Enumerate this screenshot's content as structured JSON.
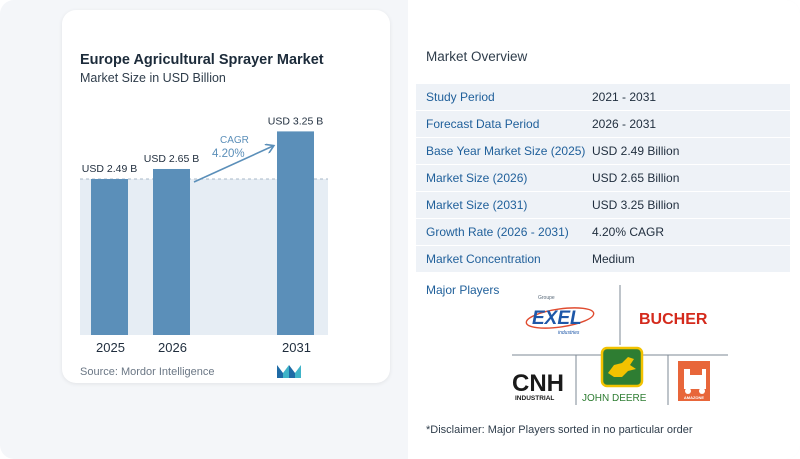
{
  "chart_title": "Europe Agricultural Sprayer Market",
  "chart_subtitle": "Market Size in USD Billion",
  "source": "Source: Mordor Intelligence",
  "chart_data": {
    "type": "bar",
    "categories": [
      "2025",
      "2026",
      "2031"
    ],
    "values": [
      2.49,
      2.65,
      3.25
    ],
    "data_labels": [
      "USD 2.49 B",
      "USD 2.65 B",
      "USD 3.25 B"
    ],
    "title": "Europe Agricultural Sprayer Market",
    "subtitle": "Market Size in USD Billion",
    "xlabel": "",
    "ylabel": "",
    "ylim": [
      0,
      3.4
    ],
    "grid": false,
    "legend": "none",
    "annotation": {
      "label": "CAGR",
      "value": "4.20%"
    },
    "colors": {
      "bar": "#5b8fb9",
      "reference_band": "#e6edf4",
      "reference_line": "#a9b9c9",
      "arrow": "#5b8fb9"
    }
  },
  "overview": {
    "title": "Market Overview",
    "rows": [
      {
        "key": "Study Period",
        "value": "2021 - 2031"
      },
      {
        "key": "Forecast Data Period",
        "value": "2026 - 2031"
      },
      {
        "key": "Base Year Market Size (2025)",
        "value": "USD 2.49 Billion"
      },
      {
        "key": "Market Size (2026)",
        "value": "USD 2.65 Billion"
      },
      {
        "key": "Market Size (2031)",
        "value": "USD 3.25 Billion"
      },
      {
        "key": "Growth Rate (2026 - 2031)",
        "value": "4.20% CAGR"
      },
      {
        "key": "Market Concentration",
        "value": "Medium"
      }
    ],
    "major_players_label": "Major Players",
    "players": {
      "exel_top": "Groupe",
      "exel": "EXEL",
      "exel_sub": "industries",
      "bucher": "BUCHER",
      "cnh": "CNH",
      "cnh_sub": "INDUSTRIAL",
      "deere": "JOHN DEERE",
      "amazone": "AMAZONE"
    },
    "disclaimer": "*Disclaimer: Major Players sorted in no particular order"
  }
}
